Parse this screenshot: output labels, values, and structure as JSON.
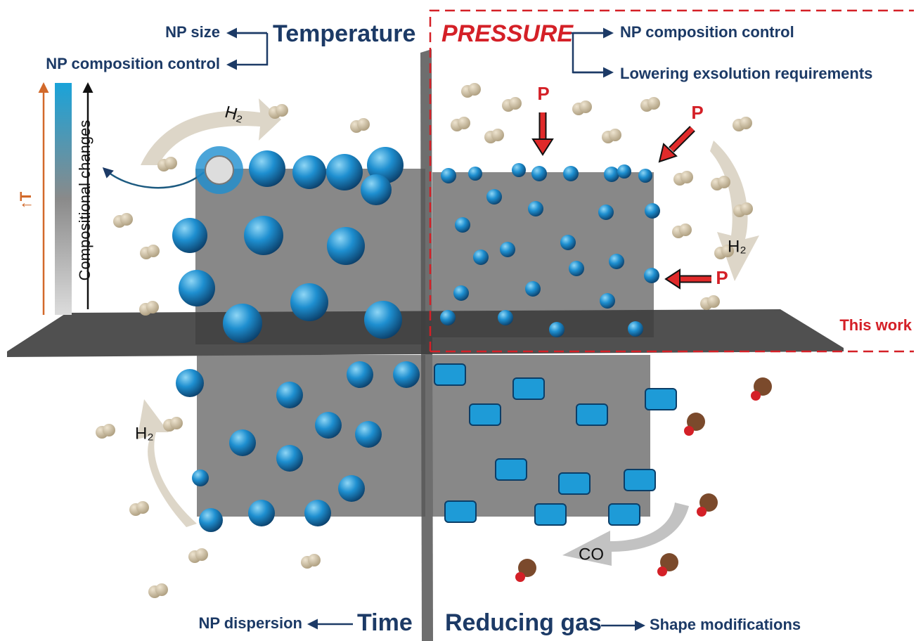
{
  "temperature": {
    "label": "Temperature",
    "outputs": [
      "NP size",
      "NP composition control"
    ],
    "gradient_label": "Compositional changes",
    "axis_label": "↑T",
    "gas_label": "H₂"
  },
  "pressure": {
    "label": "PRESSURE",
    "outputs": [
      "NP composition control",
      "Lowering exsolution requirements"
    ],
    "arrow_labels": [
      "P",
      "P",
      "P"
    ],
    "gas_label": "H₂",
    "note": "This work"
  },
  "time": {
    "label": "Time",
    "outputs": [
      "NP dispersion"
    ],
    "gas_label": "H₂"
  },
  "reducing_gas": {
    "label": "Reducing gas",
    "outputs": [
      "Shape modifications"
    ],
    "gas_label": "CO"
  }
}
